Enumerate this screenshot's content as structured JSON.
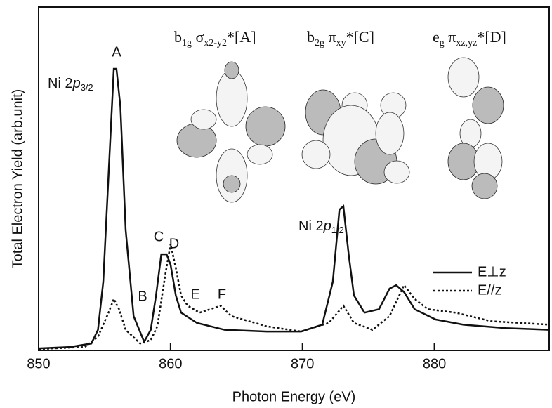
{
  "chart_data": {
    "type": "line",
    "xlabel": "Photon Energy (eV)",
    "ylabel": "Total Electron Yield (arb.unit)",
    "xlim": [
      850,
      888.7
    ],
    "ylim": [
      0,
      100
    ],
    "xticks": [
      850,
      860,
      870,
      880
    ],
    "legend": "right",
    "series": [
      {
        "name": "E⊥z",
        "color": "#111111",
        "dash": "solid",
        "x": [
          850,
          852.4,
          854,
          854.5,
          854.9,
          855.3,
          855.7,
          855.9,
          856.2,
          856.6,
          857.2,
          858.0,
          858.5,
          858.9,
          859.3,
          859.7,
          860,
          860.4,
          860.8,
          862,
          864.1,
          867.3,
          869.9,
          871.5,
          872.3,
          872.8,
          873.1,
          873.5,
          873.9,
          874.7,
          875.8,
          876.6,
          877.1,
          877.7,
          878.5,
          880.1,
          882.2,
          885.4,
          888.7
        ],
        "values": [
          0.6,
          1,
          2,
          6,
          20,
          51,
          82,
          82,
          71,
          35,
          10,
          2.5,
          6,
          16,
          28,
          28,
          25,
          16,
          11,
          8,
          6,
          5.5,
          5.5,
          7.5,
          20,
          41,
          42,
          28,
          16,
          11,
          12,
          18,
          19,
          17,
          12,
          9,
          7.5,
          6.5,
          6
        ]
      },
      {
        "name": "E//z",
        "color": "#111111",
        "dash": "dotted",
        "x": [
          850,
          853.5,
          854.5,
          855.3,
          855.7,
          856.1,
          856.6,
          857.7,
          858.5,
          859.0,
          859.6,
          860,
          860.4,
          860.8,
          861.3,
          862.2,
          863.8,
          864.6,
          867.3,
          869.9,
          872,
          873.1,
          873.9,
          875.3,
          876.6,
          877.7,
          878.5,
          879.5,
          881.6,
          884.3,
          888.7
        ],
        "values": [
          0.4,
          1,
          4,
          11,
          15,
          12,
          6,
          2,
          3,
          7,
          22,
          31,
          24,
          16,
          13,
          11,
          13,
          10,
          7,
          5.5,
          8,
          13,
          8,
          6,
          10,
          19,
          15,
          12,
          11,
          8.5,
          7.5
        ]
      }
    ],
    "annotations": [
      "A",
      "B",
      "C",
      "D",
      "E",
      "F"
    ],
    "peak_labels": [
      [
        "Ni 2",
        "p",
        "3/2"
      ],
      [
        "Ni 2",
        "p",
        "1/2"
      ]
    ],
    "orbital_labels": [
      [
        "b",
        "1g",
        " σ",
        "x2-y2",
        "*[A]"
      ],
      [
        "b",
        "2g",
        " π",
        "xy",
        "*[C]"
      ],
      [
        "e",
        "g",
        " π",
        "xz,yz",
        "*[D]"
      ]
    ]
  }
}
